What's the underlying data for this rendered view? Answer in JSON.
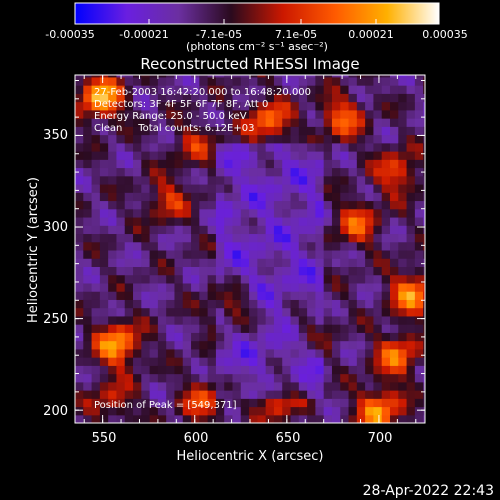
{
  "colorbar": {
    "ticks": [
      "-0.00035",
      "-0.00021",
      "-7.1e-05",
      "7.1e-05",
      "0.00021",
      "0.00035"
    ],
    "units": "(photons cm⁻² s⁻¹ asec⁻²)",
    "min": -0.00035,
    "max": 0.00035,
    "colormap": [
      "#0000ff",
      "#6a1fe0",
      "#6b2fa0",
      "#2a0a1e",
      "#cc1800",
      "#ff5a00",
      "#ffb000",
      "#ffffff"
    ]
  },
  "chart_data": {
    "type": "heatmap",
    "title": "Reconstructed RHESSI Image",
    "xlabel": "Heliocentric X (arcsec)",
    "ylabel": "Heliocentric Y (arcsec)",
    "xlim": [
      535,
      725
    ],
    "ylim": [
      193,
      383
    ],
    "xticks": [
      550,
      600,
      650,
      700
    ],
    "yticks": [
      200,
      250,
      300,
      350
    ],
    "annotations": [
      "27-Feb-2003 16:42:20.000 to 16:48:20.000",
      "Detectors: 3F 4F 5F 6F 7F 8F, Att 0",
      "Energy Range: 25.0 - 50.0 keV",
      "Clean     Total counts: 6.12E+03",
      "Position of Peak = [549,371]"
    ],
    "peak": [
      549,
      371
    ],
    "sources": [
      {
        "x": 549,
        "y": 371,
        "value": 0.00035
      },
      {
        "x": 558,
        "y": 236,
        "value": 0.00033
      },
      {
        "x": 718,
        "y": 264,
        "value": 0.0003
      },
      {
        "x": 700,
        "y": 200,
        "value": 0.00031
      },
      {
        "x": 710,
        "y": 230,
        "value": 0.00026
      },
      {
        "x": 640,
        "y": 358,
        "value": 0.00026
      },
      {
        "x": 688,
        "y": 302,
        "value": 0.00022
      },
      {
        "x": 680,
        "y": 360,
        "value": 0.00024
      },
      {
        "x": 620,
        "y": 256,
        "value": 0.0002
      },
      {
        "x": 585,
        "y": 315,
        "value": 0.00018
      },
      {
        "x": 605,
        "y": 205,
        "value": 0.0002
      },
      {
        "x": 555,
        "y": 205,
        "value": 0.00016
      },
      {
        "x": 645,
        "y": 205,
        "value": 0.00018
      },
      {
        "x": 710,
        "y": 330,
        "value": 0.00022
      },
      {
        "x": 600,
        "y": 345,
        "value": 0.00015
      },
      {
        "x": 663,
        "y": 245,
        "value": 0.00012
      }
    ],
    "grid": false
  },
  "footer": {
    "timestamp": "28-Apr-2022 22:43"
  }
}
